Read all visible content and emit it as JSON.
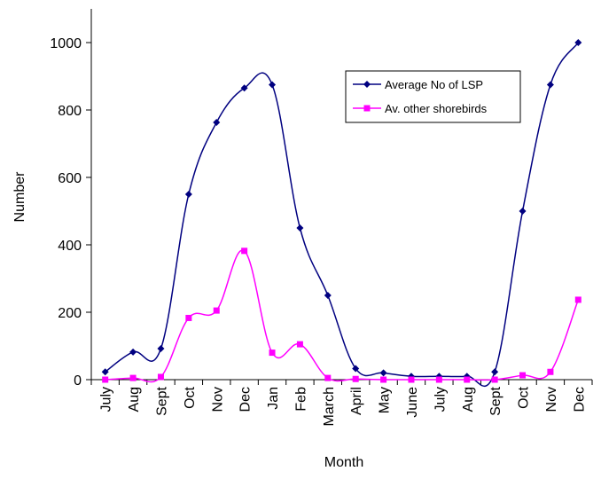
{
  "chart_data": {
    "type": "line",
    "title": "",
    "xlabel": "Month",
    "ylabel": "Number",
    "ylim": [
      0,
      1100
    ],
    "yticks": [
      0,
      200,
      400,
      600,
      800,
      1000
    ],
    "categories": [
      "July",
      "Aug",
      "Sept",
      "Oct",
      "Nov",
      "Dec",
      "Jan",
      "Feb",
      "March",
      "April",
      "May",
      "June",
      "July",
      "Aug",
      "Sept",
      "Oct",
      "Nov",
      "Dec"
    ],
    "grid": false,
    "legend_position": "top-right",
    "series": [
      {
        "name": "Average No of  LSP",
        "color": "#000080",
        "marker": "diamond",
        "smooth": true,
        "values": [
          23,
          82,
          92,
          550,
          763,
          865,
          875,
          450,
          250,
          33,
          20,
          10,
          10,
          10,
          23,
          500,
          875,
          1000
        ]
      },
      {
        "name": "Av. other shorebirds",
        "color": "#FF00FF",
        "marker": "square",
        "smooth": true,
        "values": [
          0,
          5,
          8,
          183,
          205,
          382,
          80,
          105,
          5,
          2,
          0,
          0,
          0,
          0,
          0,
          13,
          23,
          237
        ]
      }
    ]
  }
}
